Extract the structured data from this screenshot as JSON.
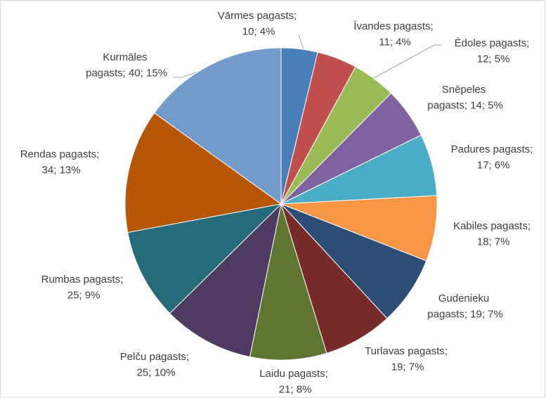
{
  "chart_data": {
    "type": "pie",
    "categories": [
      "Vārmes pagasts",
      "Īvandes pagasts",
      "Ēdoles pagasts",
      "Snēpeles pagasts",
      "Padures pagasts",
      "Kabiles pagasts",
      "Gudenieku pagasts",
      "Turlavas pagasts",
      "Laidu pagasts",
      "Pelču pagasts",
      "Rumbas pagasts",
      "Rendas pagasts",
      "Kurmāles pagasts"
    ],
    "values": [
      10,
      11,
      12,
      14,
      17,
      18,
      19,
      19,
      21,
      25,
      25,
      34,
      40
    ],
    "value_labels": [
      "Vārmes pagasts; 10; 4%",
      "Īvandes pagasts; 11; 4%",
      "Ēdoles pagasts; 12; 5%",
      "Snēpeles pagasts; 14; 5%",
      "Padures pagasts; 17; 6%",
      "Kabiles pagasts; 18; 7%",
      "Gudenieku pagasts; 19; 7%",
      "Turlavas pagasts; 19; 7%",
      "Laidu pagasts; 21; 8%",
      "Pelču pagasts; 25; 10%",
      "Rumbas pagasts; 25; 9%",
      "Rendas pagasts; 34; 13%",
      "Kurmāles pagasts; 40; 15%"
    ],
    "colors": [
      "#4a7ebb",
      "#c0504d",
      "#9bbb59",
      "#8064a2",
      "#4bacc6",
      "#f79646",
      "#2c4d75",
      "#772c2a",
      "#5f7530",
      "#4d3b62",
      "#276a7c",
      "#b65708",
      "#729aca"
    ]
  }
}
